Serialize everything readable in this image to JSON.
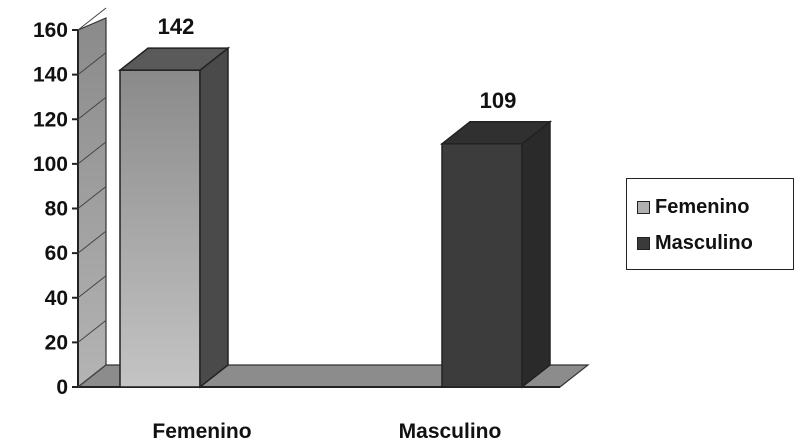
{
  "chart_data": {
    "type": "bar",
    "title": "",
    "xlabel": "",
    "ylabel": "",
    "categories": [
      "Femenino",
      "Masculino"
    ],
    "values": [
      142,
      109
    ],
    "data_labels": [
      "142",
      "109"
    ],
    "ylim": [
      0,
      160
    ],
    "yticks": [
      0,
      20,
      40,
      60,
      80,
      100,
      120,
      140,
      160
    ],
    "grid": false,
    "three_d": true,
    "legend_position": "right",
    "legend": [
      {
        "label": "Femenino",
        "color": "#b0b0b0"
      },
      {
        "label": "Masculino",
        "color": "#3a3a3a"
      }
    ],
    "colors": {
      "femenino_front_top": "#8a8a8a",
      "femenino_front_bottom": "#c4c4c4",
      "femenino_side": "#4a4a4a",
      "femenino_top": "#5a5a5a",
      "masculino_front": "#3c3c3c",
      "masculino_side": "#2a2a2a",
      "masculino_top": "#303030",
      "wall": "#a0a0a0",
      "floor": "#8c8c8c"
    }
  }
}
